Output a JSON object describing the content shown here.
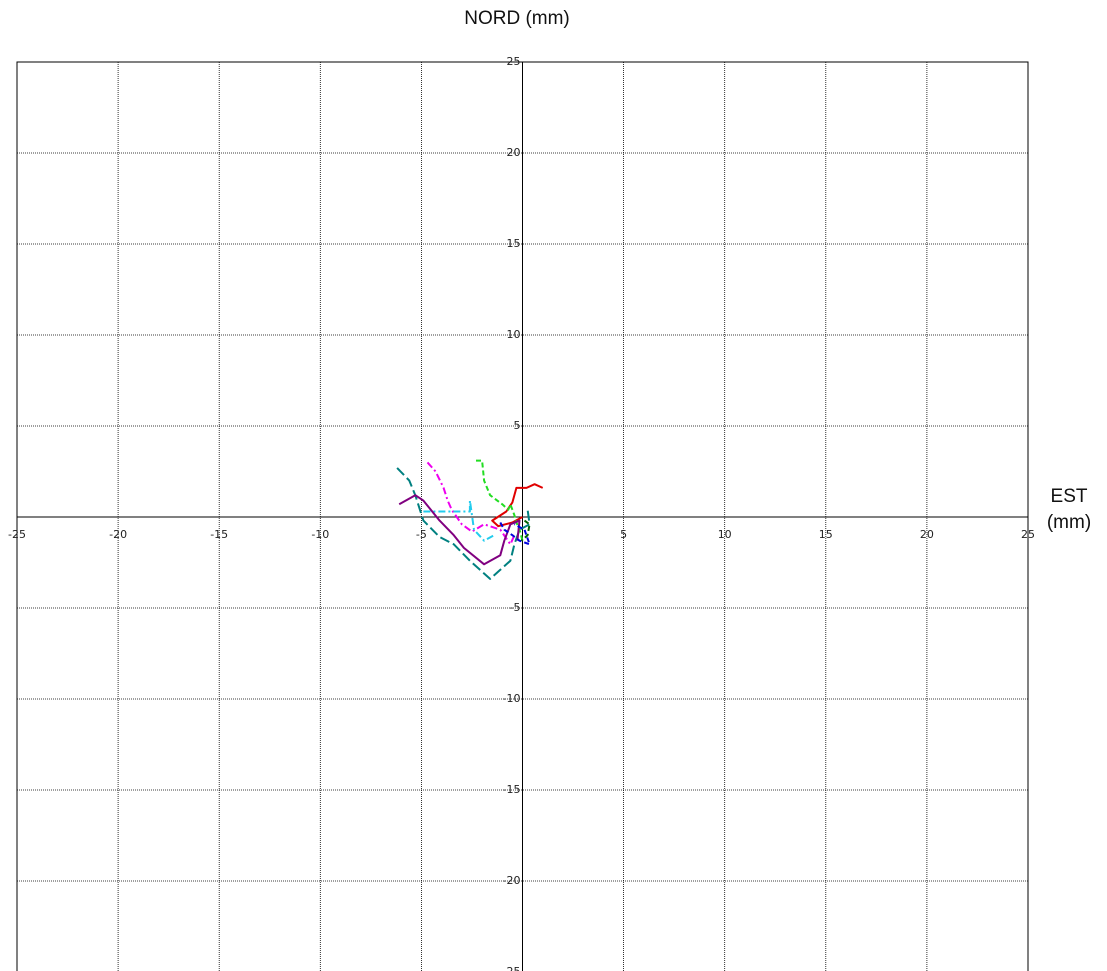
{
  "chart_data": {
    "type": "line",
    "title": "NORD (mm)",
    "xlabel": "EST (mm)",
    "xlim": [
      -25,
      25
    ],
    "ylim": [
      -25,
      25
    ],
    "xticks": [
      -25,
      -20,
      -15,
      -10,
      -5,
      5,
      10,
      15,
      20,
      25
    ],
    "yticks": [
      25,
      20,
      15,
      10,
      5,
      -5,
      -10,
      -15,
      -20,
      -25
    ],
    "grid": true,
    "series": [
      {
        "color": "#e00000",
        "linestyle": "solid",
        "x": [
          1,
          0.6,
          0.2,
          -0.3,
          -0.5,
          -0.8,
          -1.5,
          -1.2,
          -0.5,
          0
        ],
        "values": [
          1.6,
          1.8,
          1.6,
          1.6,
          0.8,
          0.3,
          -0.2,
          -0.5,
          -0.3,
          0
        ]
      },
      {
        "color": "#22dd22",
        "linestyle": "dashed",
        "x": [
          -2.3,
          -2,
          -1.9,
          -1.6,
          -1,
          -0.7,
          -0.6,
          -0.4,
          -0.3,
          -0.15,
          0
        ],
        "values": [
          3.1,
          3.1,
          2,
          1.2,
          0.7,
          0.4,
          0.7,
          0.1,
          -0.3,
          -0.7,
          -1.3
        ]
      },
      {
        "color": "#ee00ee",
        "linestyle": "dashdot",
        "x": [
          -4.7,
          -4.3,
          -3.9,
          -3.7,
          -3.5,
          -3,
          -2.5,
          -1.9,
          -1.1,
          -0.6,
          -0.4
        ],
        "values": [
          3,
          2.5,
          1.6,
          0.9,
          0.4,
          -0.4,
          -0.8,
          -0.4,
          -0.7,
          -1.5,
          -1
        ]
      },
      {
        "color": "#22ccee",
        "linestyle": "dashdot",
        "x": [
          -4.9,
          -4.4,
          -3.4,
          -2.6,
          -2.6,
          -2.4,
          -1.9,
          -1.4
        ],
        "values": [
          0.3,
          0.3,
          0.3,
          0.3,
          0.9,
          -0.7,
          -1.3,
          -1
        ]
      },
      {
        "color": "#008080",
        "linestyle": "longdash",
        "x": [
          -6.2,
          -5.6,
          -5.3,
          -4.9,
          -4.1,
          -3.4,
          -2.6,
          -1.6,
          -1.1,
          -0.6,
          -0.4,
          -0.15,
          0.35,
          0.25
        ],
        "values": [
          2.7,
          2,
          1.2,
          -0.2,
          -1.1,
          -1.5,
          -2.4,
          -3.4,
          -2.9,
          -2.4,
          -1.5,
          -0.7,
          -0.4,
          0.4
        ]
      },
      {
        "color": "#800080",
        "linestyle": "solid",
        "x": [
          -6.1,
          -5.3,
          -4.9,
          -4.1,
          -3.4,
          -2.9,
          -1.9,
          -1.1,
          -0.9,
          -0.6,
          -0.15,
          -0.25
        ],
        "values": [
          0.7,
          1.2,
          0.9,
          -0.2,
          -1,
          -1.7,
          -2.6,
          -2.1,
          -1.3,
          -0.4,
          -0.2,
          -1.3
        ]
      },
      {
        "color": "#0000dd",
        "linestyle": "dashed",
        "x": [
          -1.1,
          -0.9,
          -0.5,
          -0.15,
          0.35,
          0.1,
          -0.4
        ],
        "values": [
          -0.3,
          -0.7,
          -1,
          -1.3,
          -1.5,
          -0.7,
          -0.4
        ]
      },
      {
        "color": "#006400",
        "linestyle": "dashed",
        "x": [
          0.1,
          0.35,
          0.25,
          -0.05
        ],
        "values": [
          -0.2,
          -0.4,
          -1,
          -1.3
        ]
      }
    ]
  }
}
